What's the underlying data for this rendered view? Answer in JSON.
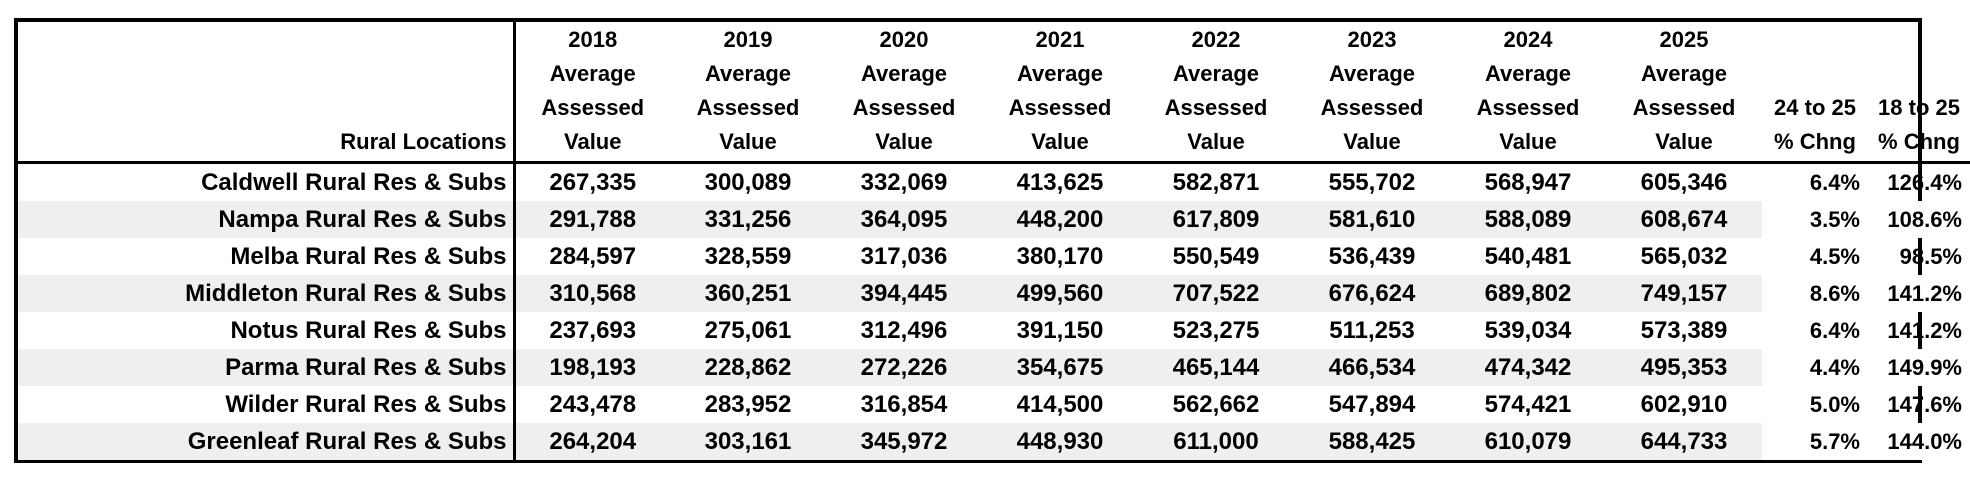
{
  "table": {
    "headers": {
      "location": "Rural Locations",
      "years": [
        {
          "year": "2018",
          "l1": "Average",
          "l2": "Assessed",
          "l3": "Value"
        },
        {
          "year": "2019",
          "l1": "Average",
          "l2": "Assessed",
          "l3": "Value"
        },
        {
          "year": "2020",
          "l1": "Average",
          "l2": "Assessed",
          "l3": "Value"
        },
        {
          "year": "2021",
          "l1": "Average",
          "l2": "Assessed",
          "l3": "Value"
        },
        {
          "year": "2022",
          "l1": "Average",
          "l2": "Assessed",
          "l3": "Value"
        },
        {
          "year": "2023",
          "l1": "Average",
          "l2": "Assessed",
          "l3": "Value"
        },
        {
          "year": "2024",
          "l1": "Average",
          "l2": "Assessed",
          "l3": "Value"
        },
        {
          "year": "2025",
          "l1": "Average",
          "l2": "Assessed",
          "l3": "Value"
        }
      ],
      "chg_24_25": {
        "l1": "24 to 25",
        "l2": "% Chng"
      },
      "chg_18_25": {
        "l1": "18 to 25",
        "l2": "% Chng"
      }
    },
    "rows": [
      {
        "location": "Caldwell Rural Res & Subs",
        "values": [
          "267,335",
          "300,089",
          "332,069",
          "413,625",
          "582,871",
          "555,702",
          "568,947",
          "605,346"
        ],
        "chg_24_25": "6.4%",
        "chg_18_25": "126.4%"
      },
      {
        "location": "Nampa Rural Res & Subs",
        "values": [
          "291,788",
          "331,256",
          "364,095",
          "448,200",
          "617,809",
          "581,610",
          "588,089",
          "608,674"
        ],
        "chg_24_25": "3.5%",
        "chg_18_25": "108.6%"
      },
      {
        "location": "Melba Rural Res & Subs",
        "values": [
          "284,597",
          "328,559",
          "317,036",
          "380,170",
          "550,549",
          "536,439",
          "540,481",
          "565,032"
        ],
        "chg_24_25": "4.5%",
        "chg_18_25": "98.5%"
      },
      {
        "location": "Middleton Rural Res & Subs",
        "values": [
          "310,568",
          "360,251",
          "394,445",
          "499,560",
          "707,522",
          "676,624",
          "689,802",
          "749,157"
        ],
        "chg_24_25": "8.6%",
        "chg_18_25": "141.2%"
      },
      {
        "location": "Notus Rural Res & Subs",
        "values": [
          "237,693",
          "275,061",
          "312,496",
          "391,150",
          "523,275",
          "511,253",
          "539,034",
          "573,389"
        ],
        "chg_24_25": "6.4%",
        "chg_18_25": "141.2%"
      },
      {
        "location": "Parma Rural Res & Subs",
        "values": [
          "198,193",
          "228,862",
          "272,226",
          "354,675",
          "465,144",
          "466,534",
          "474,342",
          "495,353"
        ],
        "chg_24_25": "4.4%",
        "chg_18_25": "149.9%"
      },
      {
        "location": "Wilder Rural Res & Subs",
        "values": [
          "243,478",
          "283,952",
          "316,854",
          "414,500",
          "562,662",
          "547,894",
          "574,421",
          "602,910"
        ],
        "chg_24_25": "5.0%",
        "chg_18_25": "147.6%"
      },
      {
        "location": "Greenleaf Rural Res & Subs",
        "values": [
          "264,204",
          "303,161",
          "345,972",
          "448,930",
          "611,000",
          "588,425",
          "610,079",
          "644,733"
        ],
        "chg_24_25": "5.7%",
        "chg_18_25": "144.0%"
      }
    ],
    "shade_color": "#efefef",
    "border_color": "#000000"
  }
}
